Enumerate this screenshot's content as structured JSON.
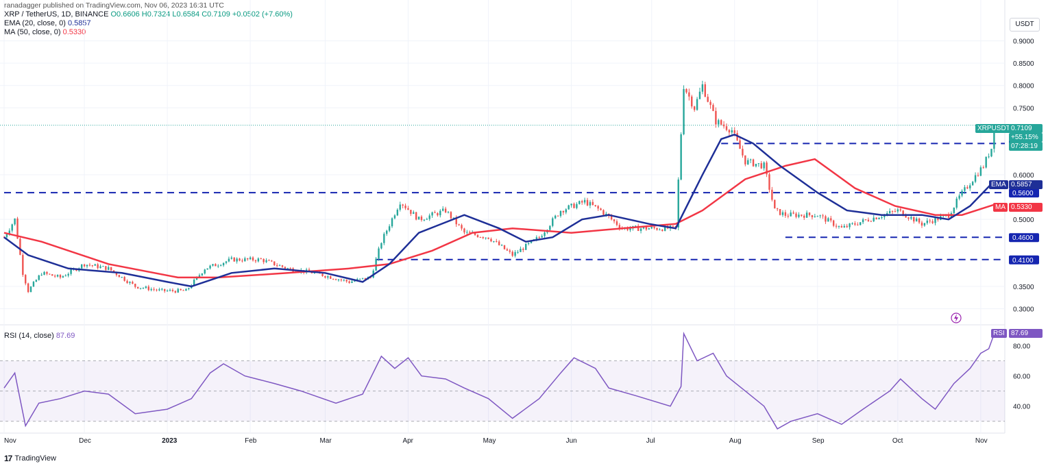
{
  "header": {
    "published": "ranadagger published on TradingView.com, Nov 06, 2023 16:31 UTC",
    "symbol": "XRP / TetherUS, 1D, BINANCE",
    "ohlc": "O0.6606 H0.7324 L0.6584 C0.7109 +0.0502 (+7.60%)",
    "ema_label": "EMA (20, close, 0)",
    "ema_value": "0.5857",
    "ma_label": "MA (50, close, 0)",
    "ma_value": "0.5330",
    "rsi_label": "RSI (14, close)",
    "rsi_value": "87.69"
  },
  "currency": "USDT",
  "brand": "TradingView",
  "colors": {
    "up": "#26a69a",
    "down": "#ef5350",
    "ema": "#1e2f97",
    "ma": "#f23645",
    "rsi": "#7e57c2",
    "level": "#1525b0"
  },
  "price_labels": {
    "symbol": "XRPUSDT",
    "last": "0.7109",
    "change": "+55.15%",
    "countdown": "07:28:19",
    "ema_tag": "EMA",
    "ema_val": "0.5857",
    "ma_tag": "MA",
    "ma_val": "0.5330",
    "rsi_tag": "RSI",
    "rsi_val": "87.69"
  },
  "chart_data": [
    {
      "type": "candlestick",
      "title": "XRP / TetherUS, 1D, BINANCE",
      "y_ticks": [
        "0.9000",
        "0.8500",
        "0.8000",
        "0.7500",
        "0.6700",
        "0.6000",
        "0.5600",
        "0.5000",
        "0.4600",
        "0.4100",
        "0.3500",
        "0.3000"
      ],
      "ylim": [
        0.27,
        0.97
      ],
      "x_ticks": [
        "Nov",
        "Dec",
        "2023",
        "Feb",
        "Mar",
        "Apr",
        "May",
        "Jun",
        "Jul",
        "Aug",
        "Sep",
        "Oct",
        "Nov"
      ],
      "levels": [
        0.67,
        0.56,
        0.46,
        0.41
      ],
      "close_path": [
        [
          "2022-11-01",
          0.46
        ],
        [
          "2022-11-05",
          0.5
        ],
        [
          "2022-11-08",
          0.38
        ],
        [
          "2022-11-10",
          0.34
        ],
        [
          "2022-11-15",
          0.38
        ],
        [
          "2022-11-22",
          0.37
        ],
        [
          "2022-12-01",
          0.4
        ],
        [
          "2022-12-10",
          0.39
        ],
        [
          "2022-12-20",
          0.35
        ],
        [
          "2022-12-30",
          0.34
        ],
        [
          "2023-01-08",
          0.34
        ],
        [
          "2023-01-15",
          0.39
        ],
        [
          "2023-01-25",
          0.41
        ],
        [
          "2023-02-05",
          0.41
        ],
        [
          "2023-02-15",
          0.39
        ],
        [
          "2023-02-25",
          0.38
        ],
        [
          "2023-03-10",
          0.36
        ],
        [
          "2023-03-18",
          0.37
        ],
        [
          "2023-03-22",
          0.45
        ],
        [
          "2023-03-29",
          0.54
        ],
        [
          "2023-04-05",
          0.5
        ],
        [
          "2023-04-15",
          0.52
        ],
        [
          "2023-04-22",
          0.47
        ],
        [
          "2023-05-01",
          0.46
        ],
        [
          "2023-05-10",
          0.42
        ],
        [
          "2023-05-20",
          0.46
        ],
        [
          "2023-05-28",
          0.52
        ],
        [
          "2023-06-06",
          0.54
        ],
        [
          "2023-06-12",
          0.52
        ],
        [
          "2023-06-20",
          0.48
        ],
        [
          "2023-06-30",
          0.48
        ],
        [
          "2023-07-10",
          0.48
        ],
        [
          "2023-07-13",
          0.8
        ],
        [
          "2023-07-17",
          0.75
        ],
        [
          "2023-07-20",
          0.8
        ],
        [
          "2023-07-25",
          0.72
        ],
        [
          "2023-07-31",
          0.7
        ],
        [
          "2023-08-05",
          0.63
        ],
        [
          "2023-08-12",
          0.62
        ],
        [
          "2023-08-16",
          0.52
        ],
        [
          "2023-08-20",
          0.51
        ],
        [
          "2023-09-01",
          0.51
        ],
        [
          "2023-09-10",
          0.48
        ],
        [
          "2023-09-20",
          0.5
        ],
        [
          "2023-10-01",
          0.52
        ],
        [
          "2023-10-10",
          0.49
        ],
        [
          "2023-10-20",
          0.51
        ],
        [
          "2023-10-24",
          0.55
        ],
        [
          "2023-10-29",
          0.59
        ],
        [
          "2023-11-02",
          0.62
        ],
        [
          "2023-11-05",
          0.66
        ],
        [
          "2023-11-06",
          0.7109
        ]
      ],
      "series": [
        {
          "name": "EMA (20, close, 0)",
          "last": 0.5857,
          "values": [
            [
              "2022-11-01",
              0.46
            ],
            [
              "2022-11-10",
              0.42
            ],
            [
              "2022-11-25",
              0.39
            ],
            [
              "2022-12-15",
              0.38
            ],
            [
              "2023-01-01",
              0.36
            ],
            [
              "2023-01-10",
              0.35
            ],
            [
              "2023-01-25",
              0.38
            ],
            [
              "2023-02-10",
              0.39
            ],
            [
              "2023-03-01",
              0.38
            ],
            [
              "2023-03-15",
              0.36
            ],
            [
              "2023-03-25",
              0.4
            ],
            [
              "2023-04-05",
              0.47
            ],
            [
              "2023-04-22",
              0.51
            ],
            [
              "2023-05-05",
              0.48
            ],
            [
              "2023-05-15",
              0.45
            ],
            [
              "2023-05-25",
              0.46
            ],
            [
              "2023-06-05",
              0.5
            ],
            [
              "2023-06-15",
              0.51
            ],
            [
              "2023-06-30",
              0.49
            ],
            [
              "2023-07-10",
              0.48
            ],
            [
              "2023-07-20",
              0.6
            ],
            [
              "2023-07-27",
              0.68
            ],
            [
              "2023-08-01",
              0.69
            ],
            [
              "2023-08-08",
              0.67
            ],
            [
              "2023-08-18",
              0.62
            ],
            [
              "2023-09-01",
              0.56
            ],
            [
              "2023-09-12",
              0.52
            ],
            [
              "2023-09-25",
              0.51
            ],
            [
              "2023-10-10",
              0.51
            ],
            [
              "2023-10-20",
              0.5
            ],
            [
              "2023-10-28",
              0.53
            ],
            [
              "2023-11-06",
              0.5857
            ]
          ]
        },
        {
          "name": "MA (50, close, 0)",
          "last": 0.533,
          "values": [
            [
              "2022-11-01",
              0.47
            ],
            [
              "2022-11-15",
              0.45
            ],
            [
              "2022-12-10",
              0.4
            ],
            [
              "2023-01-05",
              0.37
            ],
            [
              "2023-01-20",
              0.37
            ],
            [
              "2023-02-15",
              0.38
            ],
            [
              "2023-03-10",
              0.39
            ],
            [
              "2023-03-25",
              0.4
            ],
            [
              "2023-04-10",
              0.43
            ],
            [
              "2023-04-25",
              0.47
            ],
            [
              "2023-05-10",
              0.48
            ],
            [
              "2023-06-01",
              0.47
            ],
            [
              "2023-06-20",
              0.48
            ],
            [
              "2023-07-10",
              0.49
            ],
            [
              "2023-07-20",
              0.52
            ],
            [
              "2023-08-05",
              0.59
            ],
            [
              "2023-08-20",
              0.62
            ],
            [
              "2023-08-31",
              0.635
            ],
            [
              "2023-09-15",
              0.57
            ],
            [
              "2023-09-30",
              0.53
            ],
            [
              "2023-10-15",
              0.51
            ],
            [
              "2023-10-25",
              0.51
            ],
            [
              "2023-11-06",
              0.533
            ]
          ]
        }
      ]
    },
    {
      "type": "line",
      "title": "RSI (14, close)",
      "y_ticks": [
        "80.00",
        "60.00",
        "40.00"
      ],
      "ylim": [
        24,
        92
      ],
      "band": [
        30,
        70
      ],
      "series": [
        {
          "name": "RSI (14, close)",
          "last": 87.69,
          "values": [
            [
              "2022-11-01",
              52
            ],
            [
              "2022-11-05",
              62
            ],
            [
              "2022-11-09",
              27
            ],
            [
              "2022-11-14",
              42
            ],
            [
              "2022-11-22",
              45
            ],
            [
              "2022-12-01",
              50
            ],
            [
              "2022-12-10",
              48
            ],
            [
              "2022-12-20",
              35
            ],
            [
              "2023-01-01",
              38
            ],
            [
              "2023-01-10",
              45
            ],
            [
              "2023-01-17",
              62
            ],
            [
              "2023-01-22",
              68
            ],
            [
              "2023-01-30",
              60
            ],
            [
              "2023-02-10",
              55
            ],
            [
              "2023-02-20",
              50
            ],
            [
              "2023-03-05",
              42
            ],
            [
              "2023-03-15",
              48
            ],
            [
              "2023-03-22",
              73
            ],
            [
              "2023-03-27",
              65
            ],
            [
              "2023-04-01",
              72
            ],
            [
              "2023-04-06",
              60
            ],
            [
              "2023-04-15",
              58
            ],
            [
              "2023-04-22",
              52
            ],
            [
              "2023-05-01",
              45
            ],
            [
              "2023-05-10",
              32
            ],
            [
              "2023-05-20",
              45
            ],
            [
              "2023-05-28",
              62
            ],
            [
              "2023-06-02",
              72
            ],
            [
              "2023-06-10",
              65
            ],
            [
              "2023-06-15",
              52
            ],
            [
              "2023-06-25",
              47
            ],
            [
              "2023-07-08",
              40
            ],
            [
              "2023-07-12",
              53
            ],
            [
              "2023-07-13",
              88
            ],
            [
              "2023-07-18",
              70
            ],
            [
              "2023-07-24",
              75
            ],
            [
              "2023-07-29",
              60
            ],
            [
              "2023-08-05",
              50
            ],
            [
              "2023-08-12",
              40
            ],
            [
              "2023-08-17",
              25
            ],
            [
              "2023-08-22",
              30
            ],
            [
              "2023-09-01",
              35
            ],
            [
              "2023-09-10",
              28
            ],
            [
              "2023-09-18",
              38
            ],
            [
              "2023-09-28",
              50
            ],
            [
              "2023-10-02",
              58
            ],
            [
              "2023-10-10",
              45
            ],
            [
              "2023-10-15",
              38
            ],
            [
              "2023-10-22",
              55
            ],
            [
              "2023-10-28",
              65
            ],
            [
              "2023-11-01",
              75
            ],
            [
              "2023-11-04",
              78
            ],
            [
              "2023-11-06",
              87.69
            ]
          ]
        }
      ]
    }
  ]
}
